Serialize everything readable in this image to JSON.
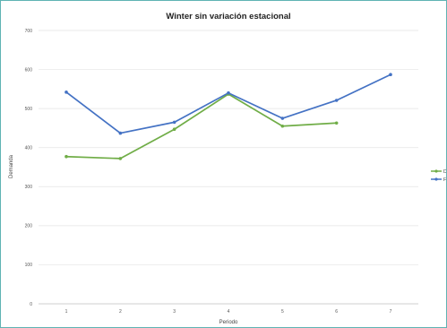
{
  "chart_data": {
    "type": "line",
    "title": "Winter sin variación estacional",
    "xlabel": "Periodo",
    "ylabel": "Demanda",
    "categories": [
      "1",
      "2",
      "3",
      "4",
      "5",
      "6",
      "7"
    ],
    "ylim": [
      0,
      700
    ],
    "yticks": [
      0,
      100,
      200,
      300,
      400,
      500,
      600,
      700
    ],
    "grid": true,
    "legend_position": "right",
    "series": [
      {
        "name": "Dt",
        "color": "#70ad47",
        "values": [
          377,
          372,
          447,
          537,
          455,
          463,
          null
        ]
      },
      {
        "name": "Ft",
        "color": "#4472c4",
        "values": [
          542,
          437,
          465,
          540,
          475,
          521,
          587
        ]
      }
    ]
  }
}
